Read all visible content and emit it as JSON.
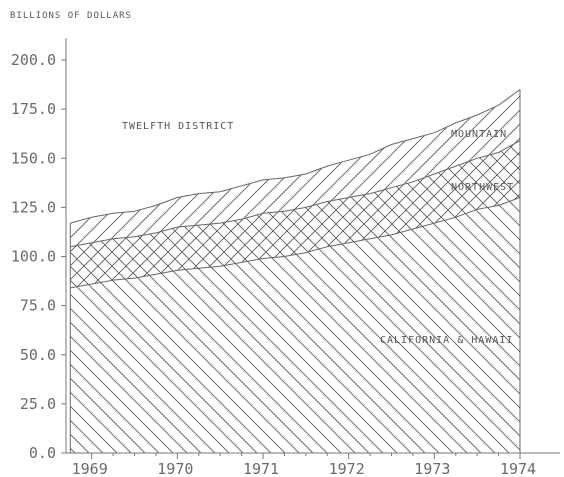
{
  "chart_data": {
    "type": "area",
    "title": "",
    "ylabel": "BILLIONS OF DOLLARS",
    "xlabel": "",
    "ylim": [
      0,
      200
    ],
    "xlim": [
      1968.7,
      1974.0
    ],
    "y_ticks": [
      "0.0",
      "25.0",
      "50.0",
      "75.0",
      "100.0",
      "125.0",
      "150.0",
      "175.0",
      "200.0"
    ],
    "x_ticks": [
      "1969",
      "1970",
      "1971",
      "1972",
      "1973",
      "1974"
    ],
    "stacked": true,
    "x": [
      1968.75,
      1969.0,
      1969.25,
      1969.5,
      1969.75,
      1970.0,
      1970.25,
      1970.5,
      1970.75,
      1971.0,
      1971.25,
      1971.5,
      1971.75,
      1972.0,
      1972.25,
      1972.5,
      1972.75,
      1973.0,
      1973.25,
      1973.5,
      1973.75,
      1974.0
    ],
    "series": [
      {
        "name": "CALIFORNIA & HAWAII",
        "values": [
          84,
          86,
          88,
          89,
          91,
          93,
          94,
          95,
          97,
          99,
          100,
          102,
          105,
          107,
          109,
          111,
          114,
          117,
          120,
          124,
          126,
          130
        ]
      },
      {
        "name": "NORTHWEST",
        "values": [
          21,
          21,
          21,
          21,
          21,
          22,
          22,
          22,
          22,
          23,
          23,
          23,
          23,
          23,
          23,
          24,
          24,
          25,
          26,
          26,
          27,
          29
        ]
      },
      {
        "name": "MOUNTAIN",
        "values": [
          12,
          13,
          13,
          13,
          14,
          15,
          16,
          16,
          17,
          17,
          17,
          17,
          18,
          19,
          20,
          22,
          22,
          21,
          22,
          22,
          24,
          26
        ]
      }
    ],
    "annotations": [
      "TWELFTH DISTRICT"
    ],
    "grid": false,
    "legend": "none"
  }
}
